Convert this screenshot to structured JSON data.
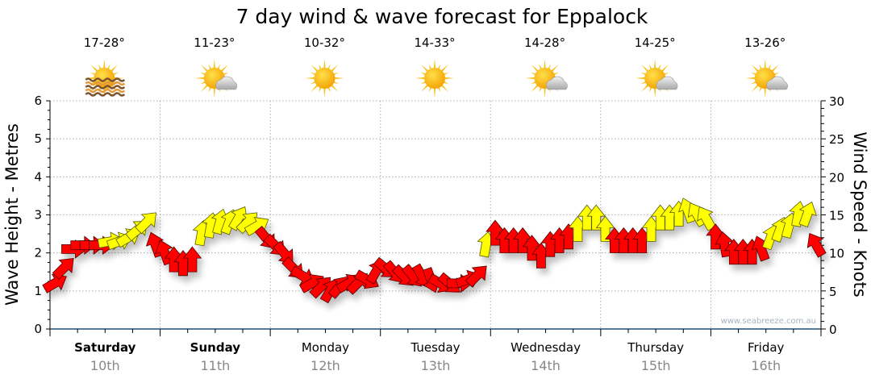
{
  "chart_data": {
    "type": "scatter",
    "title": "7 day wind & wave forecast for Eppalock",
    "ylabel_left": "Wave Height - Metres",
    "ylabel_right": "Wind Speed - Knots",
    "ylim_left": [
      0,
      6
    ],
    "ylim_right": [
      0,
      30
    ],
    "left_ticks": [
      "0",
      "1",
      "2",
      "3",
      "4",
      "5",
      "6"
    ],
    "right_ticks": [
      "0",
      "5",
      "10",
      "15",
      "20",
      "25",
      "30"
    ],
    "grid": true,
    "watermark": "www.seabreeze.com.au",
    "days": [
      {
        "name": "Saturday",
        "date": "10th",
        "weekend": true,
        "temp": "17-28°",
        "icon": "sun-haze"
      },
      {
        "name": "Sunday",
        "date": "11th",
        "weekend": true,
        "temp": "11-23°",
        "icon": "sun-cloud"
      },
      {
        "name": "Monday",
        "date": "12th",
        "weekend": false,
        "temp": "10-32°",
        "icon": "sun"
      },
      {
        "name": "Tuesday",
        "date": "13th",
        "weekend": false,
        "temp": "14-33°",
        "icon": "sun"
      },
      {
        "name": "Wednesday",
        "date": "14th",
        "weekend": false,
        "temp": "14-28°",
        "icon": "sun-cloud"
      },
      {
        "name": "Thursday",
        "date": "15th",
        "weekend": false,
        "temp": "14-25°",
        "icon": "sun-cloud"
      },
      {
        "name": "Friday",
        "date": "16th",
        "weekend": false,
        "temp": "13-26°",
        "icon": "sun-cloud"
      }
    ],
    "wind_series": {
      "name": "Wind",
      "points_per_day": 12,
      "speed_knots": [
        6,
        8,
        10.5,
        11,
        11,
        11,
        11.5,
        11.5,
        12,
        13,
        14,
        11,
        10,
        9,
        8.5,
        9,
        12.5,
        13.5,
        14,
        14,
        14.5,
        14,
        13.5,
        12,
        11,
        10,
        8,
        7,
        6,
        5.5,
        5,
        5.5,
        6,
        6,
        6.5,
        7.5,
        8,
        7.5,
        7,
        7,
        7,
        6.5,
        6,
        6,
        6,
        6.5,
        7,
        11,
        12.5,
        11.5,
        11.5,
        11.5,
        10.5,
        9.5,
        11,
        11.5,
        12,
        13,
        14.5,
        14.5,
        13,
        11.5,
        11.5,
        11.5,
        11.5,
        13,
        14.5,
        14.5,
        15,
        15.5,
        15,
        14.5,
        12,
        11,
        10,
        10,
        10,
        10.5,
        12,
        13,
        13.5,
        15,
        15,
        11
      ],
      "arrow_heading_deg": [
        60,
        45,
        90,
        90,
        90,
        90,
        80,
        70,
        60,
        50,
        45,
        340,
        340,
        0,
        0,
        0,
        10,
        10,
        15,
        20,
        30,
        45,
        60,
        140,
        135,
        140,
        135,
        120,
        60,
        45,
        30,
        40,
        60,
        45,
        120,
        30,
        130,
        140,
        135,
        140,
        150,
        160,
        120,
        130,
        90,
        70,
        45,
        10,
        0,
        0,
        0,
        0,
        0,
        0,
        0,
        0,
        0,
        0,
        0,
        0,
        0,
        0,
        0,
        0,
        0,
        0,
        0,
        0,
        0,
        340,
        330,
        330,
        0,
        350,
        0,
        0,
        0,
        340,
        20,
        20,
        15,
        10,
        20,
        330
      ],
      "color_class": [
        "r",
        "r",
        "r",
        "r",
        "r",
        "r",
        "y",
        "y",
        "y",
        "y",
        "y",
        "r",
        "r",
        "r",
        "r",
        "r",
        "y",
        "y",
        "y",
        "y",
        "y",
        "y",
        "y",
        "r",
        "r",
        "r",
        "r",
        "r",
        "r",
        "r",
        "r",
        "r",
        "r",
        "r",
        "r",
        "r",
        "r",
        "r",
        "r",
        "r",
        "r",
        "r",
        "r",
        "r",
        "r",
        "r",
        "r",
        "y",
        "r",
        "r",
        "r",
        "r",
        "r",
        "r",
        "r",
        "r",
        "r",
        "y",
        "y",
        "y",
        "y",
        "r",
        "r",
        "r",
        "r",
        "y",
        "y",
        "y",
        "y",
        "y",
        "y",
        "y",
        "r",
        "r",
        "r",
        "r",
        "r",
        "r",
        "y",
        "y",
        "y",
        "y",
        "y",
        "r"
      ]
    },
    "colors": {
      "r": "#ff0000",
      "y": "#ffff00",
      "axis": "#1f4e79",
      "date": "#888888"
    }
  }
}
